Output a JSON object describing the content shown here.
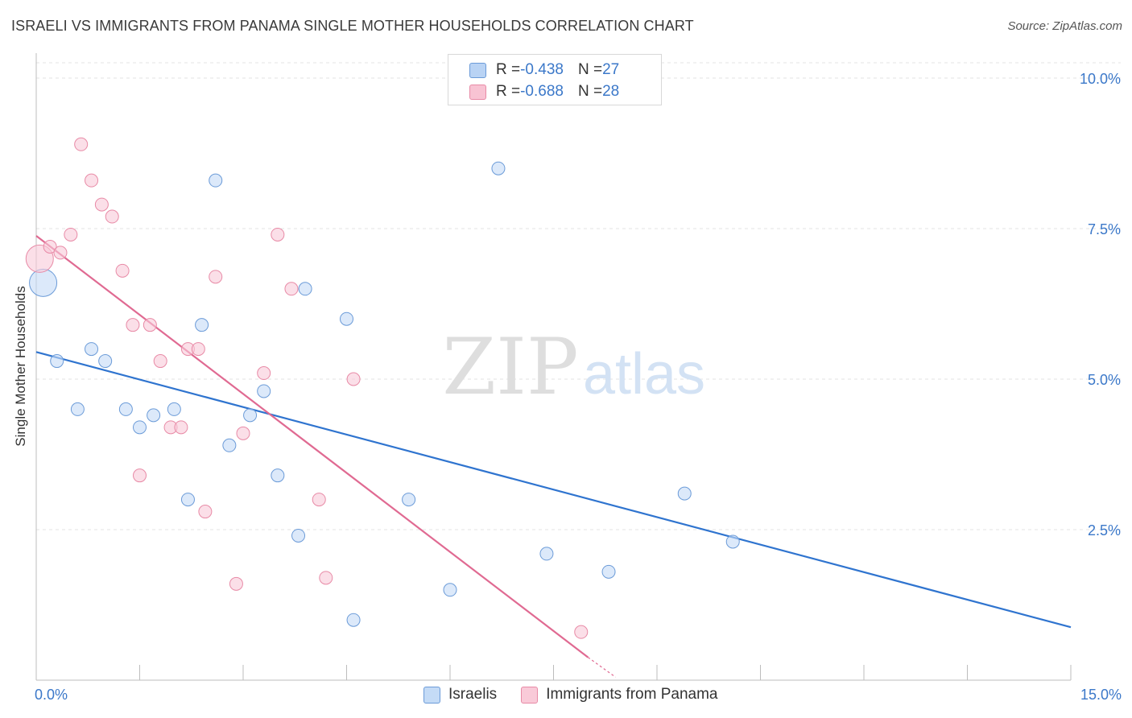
{
  "header": {
    "title": "ISRAELI VS IMMIGRANTS FROM PANAMA SINGLE MOTHER HOUSEHOLDS CORRELATION CHART",
    "source": "Source: ZipAtlas.com"
  },
  "watermark": {
    "zip": "ZIP",
    "atlas": "atlas"
  },
  "legend": {
    "rows": [
      {
        "r_label": "R = ",
        "r_value": "-0.438",
        "n_label": "N = ",
        "n_value": "27",
        "fill": "#b9d3f4",
        "stroke": "#6b9bd8"
      },
      {
        "r_label": "R = ",
        "r_value": "-0.688",
        "n_label": "N = ",
        "n_value": "28",
        "fill": "#f8c3d3",
        "stroke": "#e88aa6"
      }
    ]
  },
  "bottom_legend": {
    "israelis": "Israelis",
    "panama": "Immigrants from Panama"
  },
  "chart_data": {
    "type": "scatter",
    "ylabel": "Single Mother Households",
    "xlim": [
      0,
      15
    ],
    "ylim": [
      0,
      10
    ],
    "x_ticks": [
      "0.0%",
      "15.0%"
    ],
    "y_ticks": [
      {
        "value": 10,
        "label": "10.0%"
      },
      {
        "value": 7.5,
        "label": "7.5%"
      },
      {
        "value": 5,
        "label": "5.0%"
      },
      {
        "value": 2.5,
        "label": "2.5%"
      }
    ],
    "grid": true,
    "series": [
      {
        "name": "Israelis",
        "color": "#6b9bd8",
        "fill": "#c4dbf6",
        "line_color": "#2f74cf",
        "trend": {
          "x0": 0,
          "y0": 5.45,
          "x1": 15,
          "y1": 0.88
        },
        "points": [
          {
            "x": 0.1,
            "y": 6.6,
            "size": "large"
          },
          {
            "x": 0.3,
            "y": 5.3
          },
          {
            "x": 0.6,
            "y": 4.5
          },
          {
            "x": 0.8,
            "y": 5.5
          },
          {
            "x": 1.0,
            "y": 5.3
          },
          {
            "x": 1.3,
            "y": 4.5
          },
          {
            "x": 1.5,
            "y": 4.2
          },
          {
            "x": 1.7,
            "y": 4.4
          },
          {
            "x": 2.0,
            "y": 4.5
          },
          {
            "x": 2.2,
            "y": 3.0
          },
          {
            "x": 2.4,
            "y": 5.9
          },
          {
            "x": 2.6,
            "y": 8.3
          },
          {
            "x": 2.8,
            "y": 3.9
          },
          {
            "x": 3.1,
            "y": 4.4
          },
          {
            "x": 3.3,
            "y": 4.8
          },
          {
            "x": 3.5,
            "y": 3.4
          },
          {
            "x": 3.8,
            "y": 2.4
          },
          {
            "x": 3.9,
            "y": 6.5
          },
          {
            "x": 4.5,
            "y": 6.0
          },
          {
            "x": 4.6,
            "y": 1.0
          },
          {
            "x": 5.4,
            "y": 3.0
          },
          {
            "x": 6.0,
            "y": 1.5
          },
          {
            "x": 6.7,
            "y": 8.5
          },
          {
            "x": 7.4,
            "y": 2.1
          },
          {
            "x": 8.3,
            "y": 1.8
          },
          {
            "x": 9.4,
            "y": 3.1
          },
          {
            "x": 10.1,
            "y": 2.3
          }
        ]
      },
      {
        "name": "Immigrants from Panama",
        "color": "#e88aa6",
        "fill": "#f9cad8",
        "line_color": "#e06a92",
        "trend": {
          "x0": 0,
          "y0": 7.38,
          "x1": 8.0,
          "y1": 0.38
        },
        "trend_dashed": {
          "x0": 8.0,
          "y0": 0.38,
          "x1": 8.4,
          "y1": 0.05
        },
        "points": [
          {
            "x": 0.05,
            "y": 7.0,
            "size": "large"
          },
          {
            "x": 0.2,
            "y": 7.2
          },
          {
            "x": 0.35,
            "y": 7.1
          },
          {
            "x": 0.5,
            "y": 7.4
          },
          {
            "x": 0.65,
            "y": 8.9
          },
          {
            "x": 0.8,
            "y": 8.3
          },
          {
            "x": 0.95,
            "y": 7.9
          },
          {
            "x": 1.1,
            "y": 7.7
          },
          {
            "x": 1.25,
            "y": 6.8
          },
          {
            "x": 1.4,
            "y": 5.9
          },
          {
            "x": 1.5,
            "y": 3.4
          },
          {
            "x": 1.65,
            "y": 5.9
          },
          {
            "x": 1.8,
            "y": 5.3
          },
          {
            "x": 1.95,
            "y": 4.2
          },
          {
            "x": 2.1,
            "y": 4.2
          },
          {
            "x": 2.2,
            "y": 5.5
          },
          {
            "x": 2.35,
            "y": 5.5
          },
          {
            "x": 2.45,
            "y": 2.8
          },
          {
            "x": 2.6,
            "y": 6.7
          },
          {
            "x": 2.9,
            "y": 1.6
          },
          {
            "x": 3.0,
            "y": 4.1
          },
          {
            "x": 3.3,
            "y": 5.1
          },
          {
            "x": 3.5,
            "y": 7.4
          },
          {
            "x": 3.7,
            "y": 6.5
          },
          {
            "x": 4.1,
            "y": 3.0
          },
          {
            "x": 4.2,
            "y": 1.7
          },
          {
            "x": 4.6,
            "y": 5.0
          },
          {
            "x": 7.9,
            "y": 0.8
          }
        ]
      }
    ]
  }
}
